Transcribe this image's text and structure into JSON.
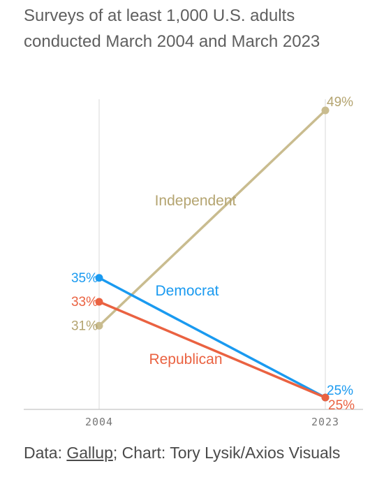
{
  "header": {
    "subtitle": "Surveys of at least 1,000 U.S. adults conducted March 2004 and March 2023"
  },
  "footer": {
    "data_prefix": "Data: ",
    "data_link": "Gallup",
    "credit": "; Chart: Tory Lysik/Axios Visuals"
  },
  "chart_data": {
    "type": "line",
    "x": [
      "2004",
      "2023"
    ],
    "ylim": [
      25,
      49
    ],
    "grid": true,
    "series": [
      {
        "name": "Independent",
        "values": [
          31,
          49
        ],
        "labels": [
          "31%",
          "49%"
        ],
        "color": "#c9bc8f",
        "label_color": "#b4a470"
      },
      {
        "name": "Democrat",
        "values": [
          35,
          25
        ],
        "labels": [
          "35%",
          "25%"
        ],
        "color": "#1a9af0",
        "label_color": "#1a9af0"
      },
      {
        "name": "Republican",
        "values": [
          33,
          25
        ],
        "labels": [
          "33%",
          "25%"
        ],
        "color": "#ea6241",
        "label_color": "#ea6241"
      }
    ]
  }
}
